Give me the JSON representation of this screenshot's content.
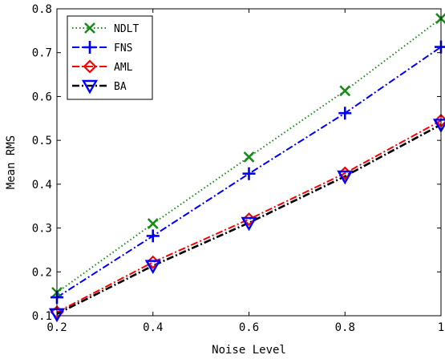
{
  "chart_data": {
    "type": "line",
    "xlabel": "Noise Level",
    "ylabel": "Mean RMS",
    "xlim": [
      0.2,
      1.0
    ],
    "ylim": [
      0.1,
      0.8
    ],
    "xticks": [
      "0.2",
      "0.4",
      "0.6",
      "0.8",
      "1"
    ],
    "xtick_values": [
      0.2,
      0.4,
      0.6,
      0.8,
      1.0
    ],
    "yticks": [
      "0.1",
      "0.2",
      "0.3",
      "0.4",
      "0.5",
      "0.6",
      "0.7",
      "0.8"
    ],
    "ytick_values": [
      0.1,
      0.2,
      0.3,
      0.4,
      0.5,
      0.6,
      0.7,
      0.8
    ],
    "grid": false,
    "legend_position": "top-left",
    "x": [
      0.2,
      0.4,
      0.6,
      0.8,
      1.0
    ],
    "series": [
      {
        "name": "NDLT",
        "values": [
          0.153,
          0.31,
          0.462,
          0.613,
          0.778
        ],
        "color": "#1a8a1a",
        "line_style": "dotted",
        "marker": "x"
      },
      {
        "name": "FNS",
        "values": [
          0.142,
          0.282,
          0.424,
          0.562,
          0.713
        ],
        "color": "#0000ff",
        "line_style": "dash-dot",
        "marker": "plus"
      },
      {
        "name": "AML",
        "values": [
          0.108,
          0.222,
          0.32,
          0.425,
          0.545
        ],
        "color": "#ff0000",
        "line_style": "dash-dot",
        "marker": "diamond"
      },
      {
        "name": "BA",
        "values": [
          0.104,
          0.214,
          0.312,
          0.418,
          0.536
        ],
        "color": "#000000",
        "line_style": "dash-dot",
        "marker": "triangle-down",
        "marker_color": "#0000ff"
      }
    ]
  }
}
